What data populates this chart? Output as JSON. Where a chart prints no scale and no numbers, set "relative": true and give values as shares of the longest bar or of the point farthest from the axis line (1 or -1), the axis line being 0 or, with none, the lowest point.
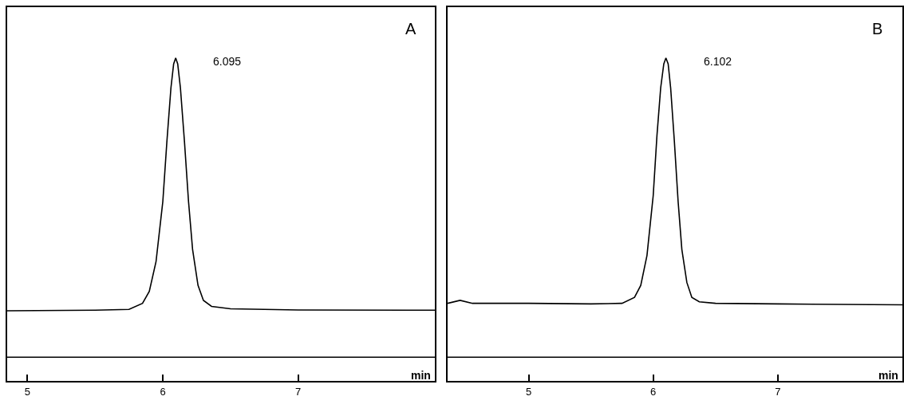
{
  "chart_data": [
    {
      "type": "line",
      "title": "A",
      "xlabel": "min",
      "relative": true,
      "tick_labels": "x",
      "marker": "none",
      "line_style": "solid",
      "x": [
        4.85,
        5.5,
        5.75,
        5.85,
        5.9,
        5.95,
        6.0,
        6.03,
        6.06,
        6.08,
        6.095,
        6.11,
        6.13,
        6.16,
        6.19,
        6.22,
        6.26,
        6.3,
        6.36,
        6.5,
        7.0,
        8.01
      ],
      "series": [
        {
          "color": "#000000",
          "values": [
            0.155,
            0.157,
            0.16,
            0.18,
            0.22,
            0.32,
            0.52,
            0.72,
            0.9,
            0.98,
            1.0,
            0.98,
            0.9,
            0.72,
            0.52,
            0.36,
            0.24,
            0.19,
            0.17,
            0.162,
            0.158,
            0.157
          ]
        }
      ],
      "xlim": [
        4.85,
        8.01
      ],
      "xticks": [
        5,
        6,
        7
      ],
      "annotations": [
        "6.095"
      ]
    },
    {
      "type": "line",
      "title": "B",
      "xlabel": "min",
      "relative": true,
      "tick_labels": "x",
      "marker": "none",
      "line_style": "solid",
      "x": [
        4.35,
        4.45,
        4.55,
        5.0,
        5.5,
        5.75,
        5.85,
        5.9,
        5.95,
        6.0,
        6.03,
        6.06,
        6.085,
        6.102,
        6.12,
        6.14,
        6.17,
        6.2,
        6.23,
        6.27,
        6.31,
        6.37,
        6.5,
        7.0,
        8.0
      ],
      "series": [
        {
          "color": "#000000",
          "values": [
            0.18,
            0.19,
            0.18,
            0.18,
            0.178,
            0.18,
            0.2,
            0.24,
            0.34,
            0.54,
            0.74,
            0.9,
            0.98,
            1.0,
            0.98,
            0.9,
            0.72,
            0.52,
            0.36,
            0.25,
            0.2,
            0.185,
            0.18,
            0.178,
            0.175
          ]
        }
      ],
      "xlim": [
        4.35,
        8.0
      ],
      "xticks": [
        5,
        6,
        7
      ],
      "annotations": [
        "6.102"
      ]
    }
  ]
}
